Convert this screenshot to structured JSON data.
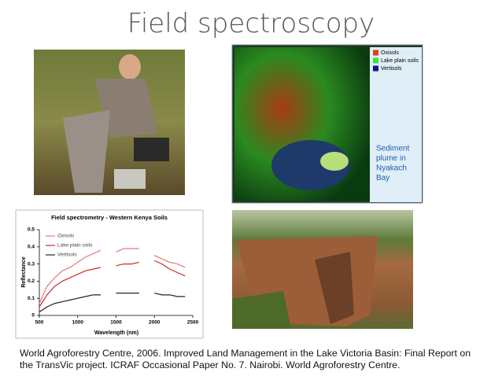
{
  "title": "Field spectroscopy",
  "map": {
    "legend": [
      {
        "name": "Oxisols",
        "color": "#e0401c"
      },
      {
        "name": "Lake plain soils",
        "color": "#3ee03a"
      },
      {
        "name": "Vertisols",
        "color": "#14148a"
      }
    ],
    "annotation": [
      "Sediment",
      "plume in",
      "Nyakach",
      "Bay"
    ]
  },
  "spectra_chart": {
    "type": "line",
    "title": "Field spectrometry - Western Kenya Soils",
    "x_label": "Wavelength (nm)",
    "y_label": "Reflectance",
    "x": [
      500,
      600,
      700,
      800,
      900,
      1000,
      1100,
      1200,
      1300,
      1400,
      1500,
      1600,
      1700,
      1800,
      1900,
      2000,
      2100,
      2200,
      2300,
      2400
    ],
    "series": [
      {
        "name": "Oxisols",
        "color": "#e07a7a",
        "values": [
          0.07,
          0.17,
          0.22,
          0.26,
          0.28,
          0.31,
          0.34,
          0.36,
          0.38,
          null,
          0.37,
          0.39,
          0.39,
          0.39,
          null,
          0.35,
          0.33,
          0.31,
          0.3,
          0.28
        ]
      },
      {
        "name": "Lake plain soils",
        "color": "#d02828",
        "values": [
          0.05,
          0.12,
          0.17,
          0.2,
          0.22,
          0.24,
          0.26,
          0.27,
          0.28,
          null,
          0.29,
          0.3,
          0.3,
          0.31,
          null,
          0.32,
          0.3,
          0.27,
          0.25,
          0.23
        ]
      },
      {
        "name": "Vertisols",
        "color": "#222222",
        "values": [
          0.02,
          0.05,
          0.07,
          0.08,
          0.09,
          0.1,
          0.11,
          0.12,
          0.12,
          null,
          0.13,
          0.13,
          0.13,
          0.13,
          null,
          0.13,
          0.12,
          0.12,
          0.11,
          0.11
        ]
      }
    ],
    "xlim": [
      500,
      2500
    ],
    "ylim": [
      0,
      0.5
    ],
    "xticks": [
      500,
      1000,
      1500,
      2000,
      2500
    ],
    "yticks": [
      0,
      0.1,
      0.2,
      0.3,
      0.4,
      0.5
    ]
  },
  "citation": "World Agroforestry Centre, 2006. Improved Land Management in the Lake Victoria Basin: Final Report on the TransVic project. ICRAF Occasional Paper No. 7. Nairobi. World Agroforestry Centre."
}
